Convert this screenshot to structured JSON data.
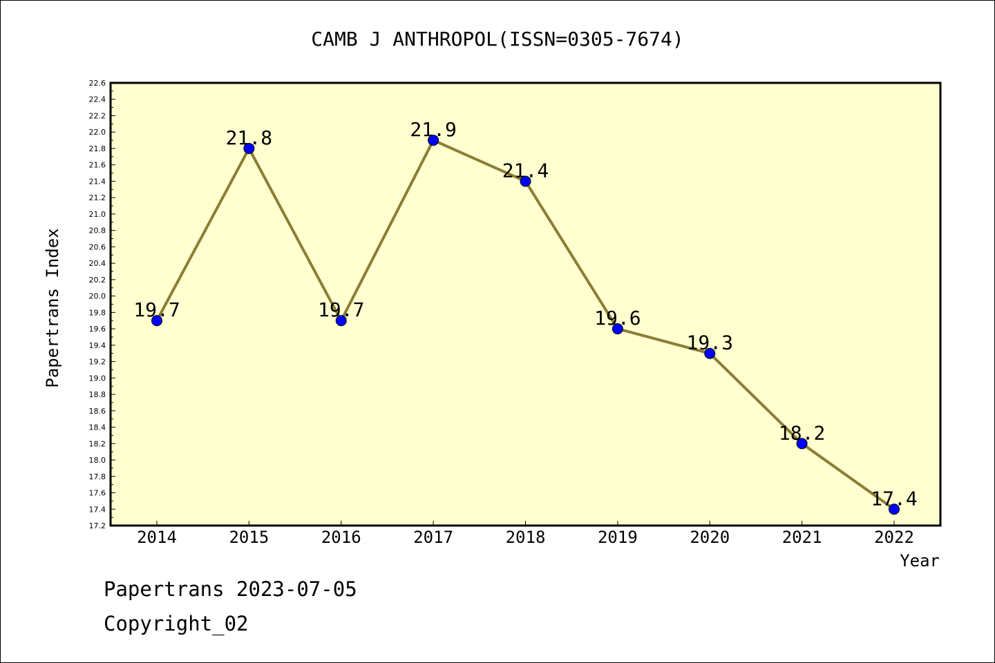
{
  "chart_data": {
    "type": "line",
    "title": "CAMB J ANTHROPOL(ISSN=0305-7674)",
    "xlabel": "Year",
    "ylabel": "Papertrans Index",
    "categories": [
      "2014",
      "2015",
      "2016",
      "2017",
      "2018",
      "2019",
      "2020",
      "2021",
      "2022"
    ],
    "series": [
      {
        "values": [
          19.7,
          21.8,
          19.7,
          21.9,
          21.4,
          19.6,
          19.3,
          18.2,
          17.4
        ]
      }
    ],
    "data_labels": [
      "19.7",
      "21.8",
      "19.7",
      "21.9",
      "21.4",
      "19.6",
      "19.3",
      "18.2",
      "17.4"
    ],
    "ylim": [
      17.2,
      22.6
    ],
    "y_ticks": [
      "17.2",
      "17.4",
      "17.6",
      "17.8",
      "18.0",
      "18.2",
      "18.4",
      "18.6",
      "18.8",
      "19.0",
      "19.2",
      "19.4",
      "19.6",
      "19.8",
      "20.0",
      "20.2",
      "20.4",
      "20.6",
      "20.8",
      "21.0",
      "21.2",
      "21.4",
      "21.6",
      "21.8",
      "22.0",
      "22.2",
      "22.4",
      "22.6"
    ],
    "grid": false,
    "plot_background": "#ffffd0",
    "line_color": "#8b7d34",
    "marker_color": "#0000ff"
  },
  "footer": {
    "line1": "Papertrans 2023-07-05",
    "line2": "Copyright_02"
  }
}
